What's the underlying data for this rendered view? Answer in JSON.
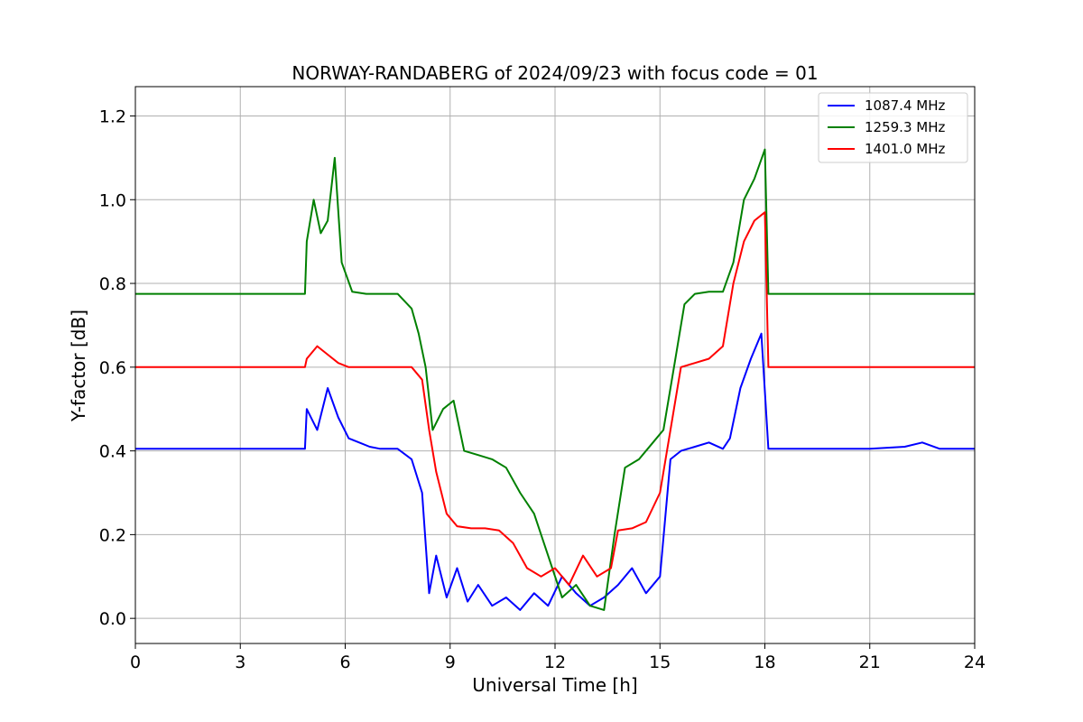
{
  "chart_data": {
    "type": "line",
    "title": "NORWAY-RANDABERG of 2024/09/23 with focus code = 01",
    "xlabel": "Universal Time [h]",
    "ylabel": "Y-factor [dB]",
    "xlim": [
      0,
      24
    ],
    "ylim": [
      -0.06,
      1.27
    ],
    "xticks": [
      0,
      3,
      6,
      9,
      12,
      15,
      18,
      21,
      24
    ],
    "xtick_labels": [
      "0",
      "3",
      "6",
      "9",
      "12",
      "15",
      "18",
      "21",
      "24"
    ],
    "yticks": [
      0.0,
      0.2,
      0.4,
      0.6,
      0.8,
      1.0,
      1.2
    ],
    "ytick_labels": [
      "0.0",
      "0.2",
      "0.4",
      "0.6",
      "0.8",
      "1.0",
      "1.2"
    ],
    "grid": true,
    "legend_position": "top-right",
    "series": [
      {
        "name": "1087.4 MHz",
        "color": "#0000ff",
        "x": [
          0,
          4.85,
          4.9,
          5.2,
          5.5,
          5.8,
          6.1,
          6.4,
          6.7,
          7.0,
          7.5,
          7.9,
          8.2,
          8.4,
          8.6,
          8.9,
          9.2,
          9.5,
          9.8,
          10.2,
          10.6,
          11.0,
          11.4,
          11.8,
          12.2,
          12.6,
          13.0,
          13.4,
          13.8,
          14.2,
          14.6,
          15.0,
          15.3,
          15.6,
          16.0,
          16.4,
          16.8,
          17.0,
          17.3,
          17.6,
          17.9,
          18.1,
          18.2,
          19,
          20,
          21,
          22,
          22.5,
          23,
          24
        ],
        "y": [
          0.405,
          0.405,
          0.5,
          0.45,
          0.55,
          0.48,
          0.43,
          0.42,
          0.41,
          0.405,
          0.405,
          0.38,
          0.3,
          0.06,
          0.15,
          0.05,
          0.12,
          0.04,
          0.08,
          0.03,
          0.05,
          0.02,
          0.06,
          0.03,
          0.1,
          0.06,
          0.03,
          0.05,
          0.08,
          0.12,
          0.06,
          0.1,
          0.38,
          0.4,
          0.41,
          0.42,
          0.405,
          0.43,
          0.55,
          0.62,
          0.68,
          0.405,
          0.405,
          0.405,
          0.405,
          0.405,
          0.41,
          0.42,
          0.405,
          0.405
        ]
      },
      {
        "name": "1259.3 MHz",
        "color": "#008000",
        "x": [
          0,
          4.85,
          4.9,
          5.1,
          5.3,
          5.5,
          5.7,
          5.9,
          6.2,
          6.6,
          7.0,
          7.5,
          7.9,
          8.1,
          8.3,
          8.5,
          8.8,
          9.1,
          9.4,
          9.8,
          10.2,
          10.6,
          11.0,
          11.4,
          11.8,
          12.2,
          12.6,
          13.0,
          13.4,
          13.7,
          14.0,
          14.4,
          14.8,
          15.1,
          15.4,
          15.7,
          16.0,
          16.4,
          16.8,
          17.1,
          17.4,
          17.7,
          18.0,
          18.1,
          19,
          20,
          21,
          22,
          23,
          24
        ],
        "y": [
          0.775,
          0.775,
          0.9,
          1.0,
          0.92,
          0.95,
          1.1,
          0.85,
          0.78,
          0.775,
          0.775,
          0.775,
          0.74,
          0.68,
          0.6,
          0.45,
          0.5,
          0.52,
          0.4,
          0.39,
          0.38,
          0.36,
          0.3,
          0.25,
          0.15,
          0.05,
          0.08,
          0.03,
          0.02,
          0.2,
          0.36,
          0.38,
          0.42,
          0.45,
          0.6,
          0.75,
          0.775,
          0.78,
          0.78,
          0.85,
          1.0,
          1.05,
          1.12,
          0.775,
          0.775,
          0.775,
          0.775,
          0.775,
          0.775,
          0.775
        ]
      },
      {
        "name": "1401.0 MHz",
        "color": "#ff0000",
        "x": [
          0,
          4.85,
          4.9,
          5.2,
          5.5,
          5.8,
          6.1,
          6.5,
          7.0,
          7.5,
          7.9,
          8.2,
          8.4,
          8.6,
          8.9,
          9.2,
          9.6,
          10.0,
          10.4,
          10.8,
          11.2,
          11.6,
          12.0,
          12.4,
          12.8,
          13.2,
          13.6,
          13.8,
          14.2,
          14.6,
          15.0,
          15.3,
          15.6,
          16.0,
          16.4,
          16.8,
          17.1,
          17.4,
          17.7,
          18.0,
          18.1,
          19,
          20,
          21,
          22,
          23,
          24
        ],
        "y": [
          0.6,
          0.6,
          0.62,
          0.65,
          0.63,
          0.61,
          0.6,
          0.6,
          0.6,
          0.6,
          0.6,
          0.57,
          0.45,
          0.35,
          0.25,
          0.22,
          0.215,
          0.215,
          0.21,
          0.18,
          0.12,
          0.1,
          0.12,
          0.08,
          0.15,
          0.1,
          0.12,
          0.21,
          0.215,
          0.23,
          0.3,
          0.45,
          0.6,
          0.61,
          0.62,
          0.65,
          0.8,
          0.9,
          0.95,
          0.97,
          0.6,
          0.6,
          0.6,
          0.6,
          0.6,
          0.6,
          0.6
        ]
      }
    ]
  }
}
